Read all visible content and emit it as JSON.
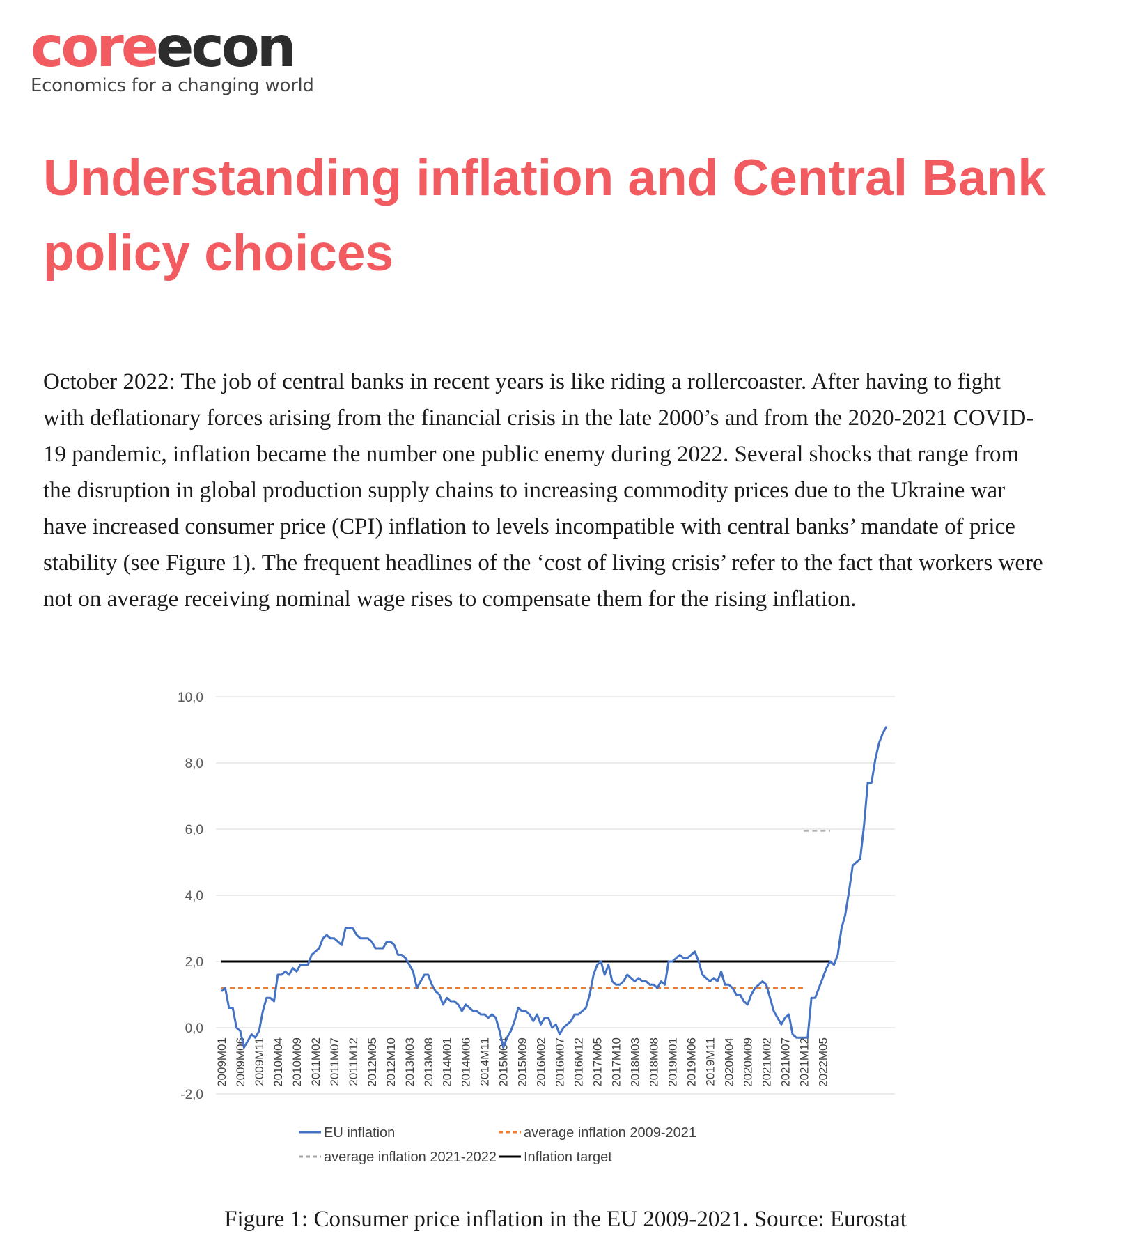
{
  "logo": {
    "word_part1": "core",
    "word_part2": "econ",
    "tagline": "Economics for a changing world",
    "colors": {
      "brand": "#f25c60",
      "dark": "#2d2d2d"
    }
  },
  "article": {
    "title": "Understanding inflation and Central Bank policy choices",
    "paragraph": "October 2022: The job of central banks in recent years is like riding a rollercoaster. After having to fight with deflationary forces arising from the financial crisis in the late 2000’s and from the 2020-2021 COVID-19 pandemic, inflation became the number one public enemy during 2022. Several shocks that range from the disruption in global production supply chains to increasing commodity prices due to the Ukraine war have increased consumer price (CPI) inflation to levels incompatible with central banks’ mandate of price stability (see Figure 1). The frequent headlines of the ‘cost of living crisis’ refer to the fact that workers were not on average receiving nominal wage rises to compensate them for the rising inflation.",
    "caption": "Figure 1: Consumer price inflation in the EU 2009-2021. Source: Eurostat"
  },
  "chart_data": {
    "type": "line",
    "title": "",
    "xlabel": "",
    "ylabel": "",
    "ylim": [
      -2,
      10
    ],
    "yticks": [
      "10,0",
      "8,0",
      "6,0",
      "4,0",
      "2,0",
      "0,0",
      "-2,0"
    ],
    "ytick_values": [
      10,
      8,
      6,
      4,
      2,
      0,
      -2
    ],
    "grid": true,
    "legend_position": "bottom",
    "x_start": "2009M01",
    "x_tick_labels": [
      "2009M01",
      "2009M06",
      "2009M11",
      "2010M04",
      "2010M09",
      "2011M02",
      "2011M07",
      "2011M12",
      "2012M05",
      "2012M10",
      "2013M03",
      "2013M08",
      "2014M01",
      "2014M06",
      "2014M11",
      "2015M04",
      "2015M09",
      "2016M02",
      "2016M07",
      "2016M12",
      "2017M05",
      "2017M10",
      "2018M03",
      "2018M08",
      "2019M01",
      "2019M06",
      "2019M11",
      "2020M04",
      "2020M09",
      "2021M02",
      "2021M07",
      "2021M12",
      "2022M05"
    ],
    "series": [
      {
        "name": "EU inflation",
        "color": "#4472c4",
        "style": "solid",
        "values": [
          1.1,
          1.2,
          0.6,
          0.6,
          0.0,
          -0.1,
          -0.6,
          -0.4,
          -0.2,
          -0.3,
          -0.1,
          0.5,
          0.9,
          0.9,
          0.8,
          1.6,
          1.6,
          1.7,
          1.6,
          1.8,
          1.7,
          1.9,
          1.9,
          1.9,
          2.2,
          2.3,
          2.4,
          2.7,
          2.8,
          2.7,
          2.7,
          2.6,
          2.5,
          3.0,
          3.0,
          3.0,
          2.8,
          2.7,
          2.7,
          2.7,
          2.6,
          2.4,
          2.4,
          2.4,
          2.6,
          2.6,
          2.5,
          2.2,
          2.2,
          2.1,
          1.9,
          1.7,
          1.2,
          1.4,
          1.6,
          1.6,
          1.3,
          1.1,
          1.0,
          0.7,
          0.9,
          0.8,
          0.8,
          0.7,
          0.5,
          0.7,
          0.6,
          0.5,
          0.5,
          0.4,
          0.4,
          0.3,
          0.4,
          0.3,
          -0.1,
          -0.6,
          -0.3,
          -0.1,
          0.2,
          0.6,
          0.5,
          0.5,
          0.4,
          0.2,
          0.4,
          0.1,
          0.3,
          0.3,
          0.0,
          0.1,
          -0.2,
          0.0,
          0.1,
          0.2,
          0.4,
          0.4,
          0.5,
          0.6,
          1.0,
          1.6,
          1.9,
          2.0,
          1.6,
          1.9,
          1.4,
          1.3,
          1.3,
          1.4,
          1.6,
          1.5,
          1.4,
          1.5,
          1.4,
          1.4,
          1.3,
          1.3,
          1.2,
          1.4,
          1.3,
          2.0,
          2.0,
          2.1,
          2.2,
          2.1,
          2.1,
          2.2,
          2.3,
          2.0,
          1.6,
          1.5,
          1.4,
          1.5,
          1.4,
          1.7,
          1.3,
          1.3,
          1.2,
          1.0,
          1.0,
          0.8,
          0.7,
          1.0,
          1.2,
          1.3,
          1.4,
          1.3,
          0.9,
          0.5,
          0.3,
          0.1,
          0.3,
          0.4,
          -0.2,
          -0.3,
          -0.3,
          -0.3,
          -0.3,
          0.9,
          0.9,
          1.2,
          1.5,
          1.8,
          2.0,
          1.9,
          2.2,
          3.0,
          3.4,
          4.1,
          4.9,
          5.0,
          5.1,
          6.1,
          7.4,
          7.4,
          8.1,
          8.6,
          8.9,
          9.1
        ]
      },
      {
        "name": "average inflation 2009-2021",
        "color": "#ed7d31",
        "style": "dashed",
        "value": 1.2,
        "x_range": [
          "2009M01",
          "2021M12"
        ]
      },
      {
        "name": "average inflation 2021-2022",
        "color": "#a5a5a5",
        "style": "dashed",
        "value": 5.95,
        "x_range": [
          "2021M12",
          "2022M07"
        ]
      },
      {
        "name": "Inflation target",
        "color": "#000000",
        "style": "solid",
        "value": 2.0,
        "x_range": [
          "2009M01",
          "2022M07"
        ]
      }
    ]
  }
}
